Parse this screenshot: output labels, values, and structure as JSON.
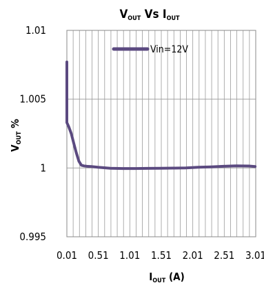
{
  "chart_data": {
    "type": "line",
    "title": {
      "main": "V",
      "main_sub": "OUT",
      "mid": " Vs ",
      "second": "I",
      "second_sub": "OUT"
    },
    "xlabel": {
      "main": "I",
      "sub": "OUT",
      "rest": " (A)"
    },
    "ylabel": {
      "main": "V",
      "sub": "OUT",
      "rest": " %"
    },
    "xlim": [
      0.01,
      3.01
    ],
    "ylim": [
      0.995,
      1.01
    ],
    "x_ticks": [
      0.01,
      0.51,
      1.01,
      1.51,
      2.01,
      2.51,
      3.01
    ],
    "x_tick_labels": [
      "0.01",
      "0.51",
      "1.01",
      "1.51",
      "2.01",
      "2.51",
      "3.01"
    ],
    "y_ticks": [
      0.995,
      1,
      1.005,
      1.01
    ],
    "y_tick_labels": [
      "0.995",
      "1",
      "1.005",
      "1.01"
    ],
    "x_minor_step": 0.1,
    "grid": true,
    "legend_position": "top",
    "series": [
      {
        "name": "Vin=12V",
        "color": "#5b4a80",
        "x": [
          0.01,
          0.01,
          0.04,
          0.08,
          0.12,
          0.16,
          0.2,
          0.24,
          0.28,
          0.33,
          0.4,
          0.5,
          0.7,
          0.9,
          1.1,
          1.3,
          1.5,
          1.7,
          1.9,
          2.1,
          2.3,
          2.5,
          2.7,
          2.9,
          3.0
        ],
        "y": [
          1.0077,
          1.0033,
          1.003,
          1.0025,
          1.0018,
          1.0011,
          1.0005,
          1.0002,
          1.00015,
          1.00012,
          1.0001,
          1.00005,
          0.99998,
          0.99996,
          0.99996,
          0.99997,
          0.99998,
          0.99999,
          1.0,
          1.00005,
          1.00008,
          1.00012,
          1.00015,
          1.00014,
          1.0001
        ]
      }
    ]
  }
}
